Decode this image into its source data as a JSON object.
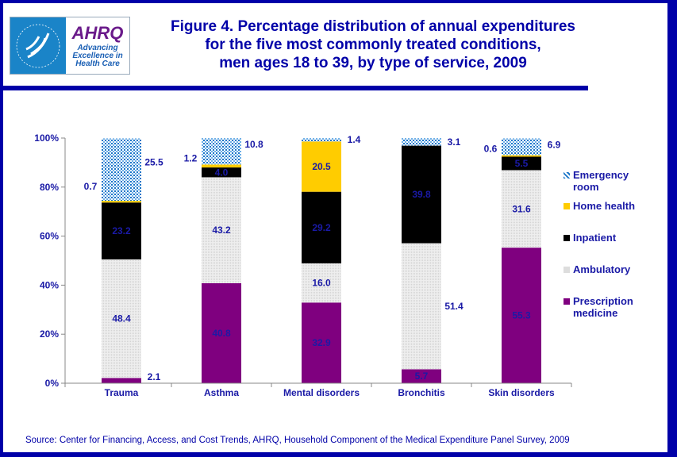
{
  "header": {
    "title_lines": [
      "Figure 4. Percentage distribution of annual expenditures",
      "for the five most commonly treated conditions,",
      "men ages 18 to 39, by type of service, 2009"
    ],
    "logo": {
      "agency": "AHRQ",
      "tagline": "Advancing Excellence in Health Care",
      "seal": "Department of Health & Human Services USA"
    }
  },
  "source": "Source: Center for Financing, Access, and Cost Trends, AHRQ, Household Component of the Medical Expenditure Panel Survey,  2009",
  "colors": {
    "Prescription medicine": "#7f007f",
    "Ambulatory": "#e6e6e6",
    "Inpatient": "#000000",
    "Home health": "#ffcc00",
    "Emergency room": "#1a75c8",
    "text": "#1a1aa6",
    "frame": "#0000a8"
  },
  "chart_data": {
    "type": "bar",
    "stacked": true,
    "categories": [
      "Trauma",
      "Asthma",
      "Mental disorders",
      "Bronchitis",
      "Skin disorders"
    ],
    "series": [
      {
        "name": "Prescription medicine",
        "values": [
          2.1,
          40.8,
          32.9,
          5.7,
          55.3
        ]
      },
      {
        "name": "Ambulatory",
        "values": [
          48.4,
          43.2,
          16.0,
          51.4,
          31.6
        ]
      },
      {
        "name": "Inpatient",
        "values": [
          23.2,
          4.0,
          29.2,
          39.8,
          5.5
        ]
      },
      {
        "name": "Home health",
        "values": [
          0.7,
          1.2,
          20.5,
          null,
          0.6
        ]
      },
      {
        "name": "Emergency room",
        "values": [
          25.5,
          10.8,
          1.4,
          3.1,
          6.9
        ]
      }
    ],
    "yticks": [
      "0%",
      "20%",
      "40%",
      "60%",
      "80%",
      "100%"
    ],
    "ylim": [
      0,
      100
    ],
    "grid": false,
    "legend": "right",
    "legend_order": [
      "Emergency room",
      "Home health",
      "Inpatient",
      "Ambulatory",
      "Prescription medicine"
    ]
  }
}
